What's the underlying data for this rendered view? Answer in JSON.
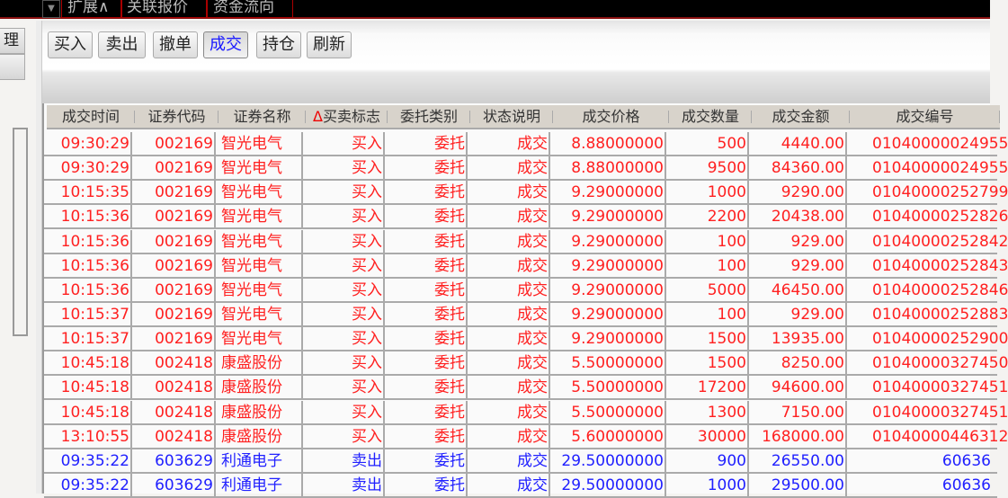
{
  "topbar": {
    "tabs": [
      "扩展∧",
      "关联报价",
      "资金流向"
    ]
  },
  "sidebar": {
    "items": [
      "理",
      ""
    ]
  },
  "toolbar": {
    "buttons": [
      {
        "label": "买入",
        "active": false
      },
      {
        "label": "卖出",
        "active": false
      },
      {
        "label": "撤单",
        "active": false
      },
      {
        "label": "成交",
        "active": true
      },
      {
        "label": "持仓",
        "active": false
      },
      {
        "label": "刷新",
        "active": false
      }
    ]
  },
  "table": {
    "sort_indicator": "Δ",
    "columns": [
      "成交时间",
      "证券代码",
      "证券名称",
      "买卖标志",
      "委托类别",
      "状态说明",
      "成交价格",
      "成交数量",
      "成交金额",
      "成交编号"
    ],
    "colors": {
      "buy": "#ff2020",
      "sell": "#2020ff"
    },
    "rows": [
      [
        "09:30:29",
        "002169",
        "智光电气",
        "买入",
        "委托",
        "成交",
        "8.88000000",
        "500",
        "4440.00",
        "01040000024955"
      ],
      [
        "09:30:29",
        "002169",
        "智光电气",
        "买入",
        "委托",
        "成交",
        "8.88000000",
        "9500",
        "84360.00",
        "01040000024955"
      ],
      [
        "10:15:35",
        "002169",
        "智光电气",
        "买入",
        "委托",
        "成交",
        "9.29000000",
        "1000",
        "9290.00",
        "01040000252799"
      ],
      [
        "10:15:36",
        "002169",
        "智光电气",
        "买入",
        "委托",
        "成交",
        "9.29000000",
        "2200",
        "20438.00",
        "01040000252826"
      ],
      [
        "10:15:36",
        "002169",
        "智光电气",
        "买入",
        "委托",
        "成交",
        "9.29000000",
        "100",
        "929.00",
        "01040000252842"
      ],
      [
        "10:15:36",
        "002169",
        "智光电气",
        "买入",
        "委托",
        "成交",
        "9.29000000",
        "100",
        "929.00",
        "01040000252843"
      ],
      [
        "10:15:36",
        "002169",
        "智光电气",
        "买入",
        "委托",
        "成交",
        "9.29000000",
        "5000",
        "46450.00",
        "01040000252846"
      ],
      [
        "10:15:37",
        "002169",
        "智光电气",
        "买入",
        "委托",
        "成交",
        "9.29000000",
        "100",
        "929.00",
        "01040000252883"
      ],
      [
        "10:15:37",
        "002169",
        "智光电气",
        "买入",
        "委托",
        "成交",
        "9.29000000",
        "1500",
        "13935.00",
        "01040000252900"
      ],
      [
        "10:45:18",
        "002418",
        "康盛股份",
        "买入",
        "委托",
        "成交",
        "5.50000000",
        "1500",
        "8250.00",
        "01040000327450"
      ],
      [
        "10:45:18",
        "002418",
        "康盛股份",
        "买入",
        "委托",
        "成交",
        "5.50000000",
        "17200",
        "94600.00",
        "01040000327451"
      ],
      [
        "10:45:18",
        "002418",
        "康盛股份",
        "买入",
        "委托",
        "成交",
        "5.50000000",
        "1300",
        "7150.00",
        "01040000327451"
      ],
      [
        "13:10:55",
        "002418",
        "康盛股份",
        "买入",
        "委托",
        "成交",
        "5.60000000",
        "30000",
        "168000.00",
        "01040000446312"
      ],
      [
        "09:35:22",
        "603629",
        "利通电子",
        "卖出",
        "委托",
        "成交",
        "29.50000000",
        "900",
        "26550.00",
        "60636"
      ],
      [
        "09:35:22",
        "603629",
        "利通电子",
        "卖出",
        "委托",
        "成交",
        "29.50000000",
        "1000",
        "29500.00",
        "60636"
      ]
    ]
  }
}
